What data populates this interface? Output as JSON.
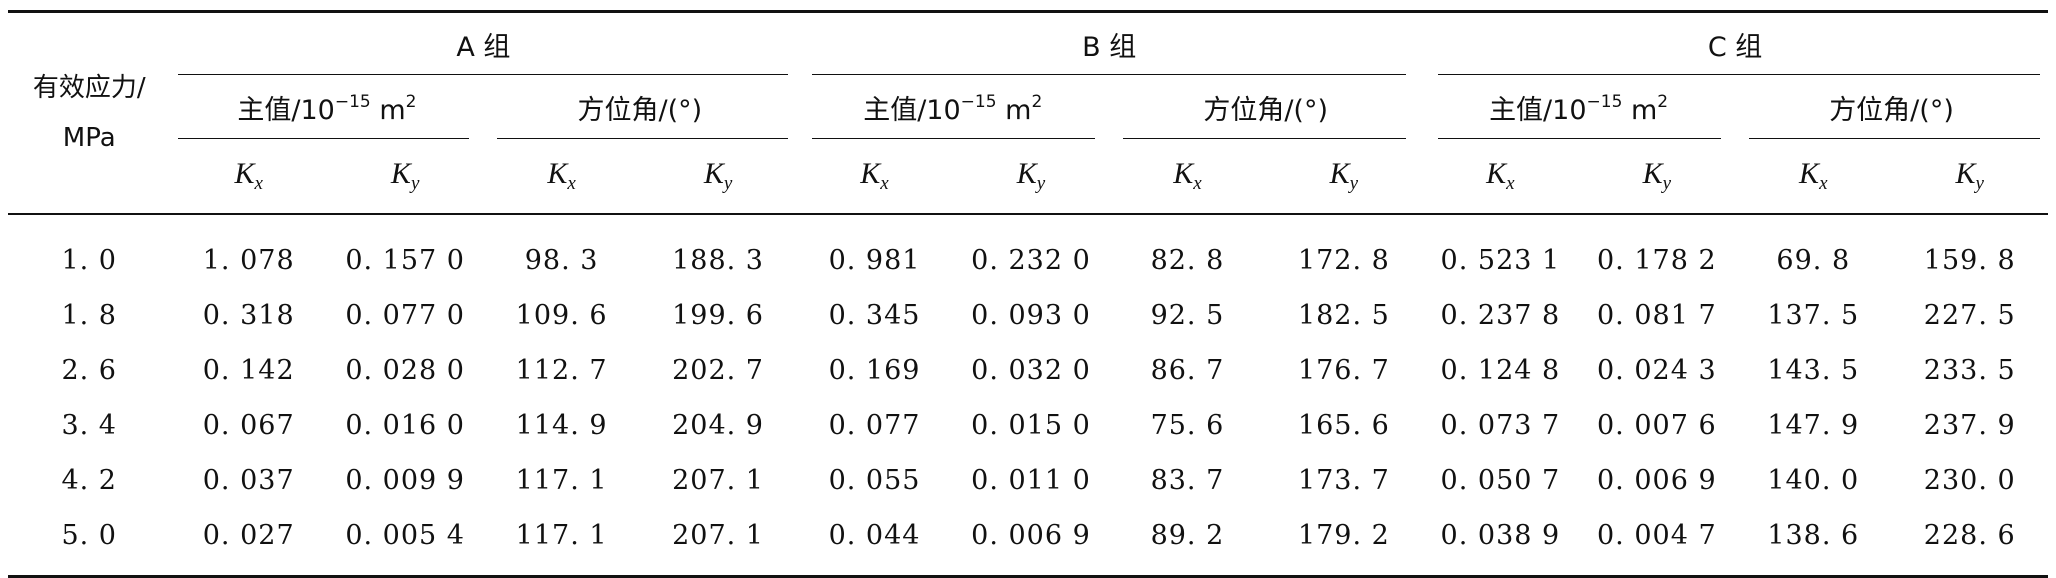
{
  "table": {
    "stress_header_line1": "有效应力/",
    "stress_header_line2": "MPa",
    "groups": [
      {
        "label": "A 组"
      },
      {
        "label": "B 组"
      },
      {
        "label": "C 组"
      }
    ],
    "sub_headers": {
      "principal_prefix": "主值/10",
      "principal_exp": "−15",
      "principal_unit": " m",
      "principal_unit_exp": "2",
      "azimuth": "方位角/(°)"
    },
    "var_k": "K",
    "var_x": "x",
    "var_y": "y",
    "rows": [
      {
        "stress": "1. 0",
        "a_kx": "1. 078",
        "a_ky": "0. 157 0",
        "a_ax": "98. 3",
        "a_ay": "188. 3",
        "b_kx": "0. 981",
        "b_ky": "0. 232 0",
        "b_ax": "82. 8",
        "b_ay": "172. 8",
        "c_kx": "0. 523 1",
        "c_ky": "0. 178 2",
        "c_ax": "69. 8",
        "c_ay": "159. 8"
      },
      {
        "stress": "1. 8",
        "a_kx": "0. 318",
        "a_ky": "0. 077 0",
        "a_ax": "109. 6",
        "a_ay": "199. 6",
        "b_kx": "0. 345",
        "b_ky": "0. 093 0",
        "b_ax": "92. 5",
        "b_ay": "182. 5",
        "c_kx": "0. 237 8",
        "c_ky": "0. 081 7",
        "c_ax": "137. 5",
        "c_ay": "227. 5"
      },
      {
        "stress": "2. 6",
        "a_kx": "0. 142",
        "a_ky": "0. 028 0",
        "a_ax": "112. 7",
        "a_ay": "202. 7",
        "b_kx": "0. 169",
        "b_ky": "0. 032 0",
        "b_ax": "86. 7",
        "b_ay": "176. 7",
        "c_kx": "0. 124 8",
        "c_ky": "0. 024 3",
        "c_ax": "143. 5",
        "c_ay": "233. 5"
      },
      {
        "stress": "3. 4",
        "a_kx": "0. 067",
        "a_ky": "0. 016 0",
        "a_ax": "114. 9",
        "a_ay": "204. 9",
        "b_kx": "0. 077",
        "b_ky": "0. 015 0",
        "b_ax": "75. 6",
        "b_ay": "165. 6",
        "c_kx": "0. 073 7",
        "c_ky": "0. 007 6",
        "c_ax": "147. 9",
        "c_ay": "237. 9"
      },
      {
        "stress": "4. 2",
        "a_kx": "0. 037",
        "a_ky": "0. 009 9",
        "a_ax": "117. 1",
        "a_ay": "207. 1",
        "b_kx": "0. 055",
        "b_ky": "0. 011 0",
        "b_ax": "83. 7",
        "b_ay": "173. 7",
        "c_kx": "0. 050 7",
        "c_ky": "0. 006 9",
        "c_ax": "140. 0",
        "c_ay": "230. 0"
      },
      {
        "stress": "5. 0",
        "a_kx": "0. 027",
        "a_ky": "0. 005 4",
        "a_ax": "117. 1",
        "a_ay": "207. 1",
        "b_kx": "0. 044",
        "b_ky": "0. 006 9",
        "b_ax": "89. 2",
        "b_ay": "179. 2",
        "c_kx": "0. 038 9",
        "c_ky": "0. 004 7",
        "c_ax": "138. 6",
        "c_ay": "228. 6"
      }
    ]
  }
}
